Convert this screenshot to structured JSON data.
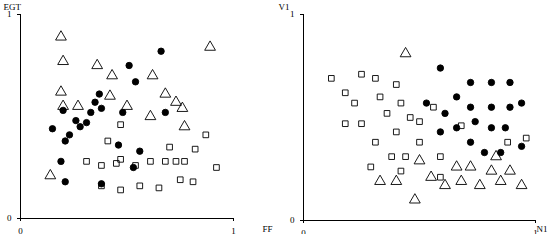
{
  "chart_data": [
    {
      "type": "scatter",
      "x_label": "FF",
      "y_label": "EGT",
      "xlim": [
        0,
        1
      ],
      "ylim": [
        0,
        1
      ],
      "xticks": [
        0,
        1
      ],
      "yticks": [
        0,
        1
      ],
      "grid": false,
      "series": [
        {
          "marker": "open_triangle",
          "color": "#000000",
          "x": [
            0.19,
            0.2,
            0.19,
            0.2,
            0.27,
            0.36,
            0.43,
            0.42,
            0.5,
            0.62,
            0.68,
            0.73,
            0.76,
            0.61,
            0.89,
            0.14,
            0.77
          ],
          "y": [
            0.89,
            0.77,
            0.62,
            0.55,
            0.55,
            0.75,
            0.7,
            0.6,
            0.55,
            0.7,
            0.61,
            0.57,
            0.54,
            0.5,
            0.84,
            0.21,
            0.45
          ]
        },
        {
          "marker": "filled_circle",
          "color": "#000000",
          "x": [
            0.15,
            0.2,
            0.23,
            0.26,
            0.28,
            0.31,
            0.33,
            0.35,
            0.38,
            0.37,
            0.21,
            0.19,
            0.21,
            0.38,
            0.51,
            0.54,
            0.66,
            0.68,
            0.56,
            0.53,
            0.46,
            0.48
          ],
          "y": [
            0.44,
            0.53,
            0.41,
            0.48,
            0.45,
            0.47,
            0.52,
            0.57,
            0.54,
            0.61,
            0.38,
            0.28,
            0.18,
            0.17,
            0.75,
            0.67,
            0.82,
            0.52,
            0.33,
            0.25,
            0.36,
            0.52
          ]
        },
        {
          "marker": "open_square",
          "color": "#000000",
          "x": [
            0.47,
            0.41,
            0.47,
            0.31,
            0.38,
            0.45,
            0.54,
            0.61,
            0.68,
            0.73,
            0.77,
            0.82,
            0.87,
            0.81,
            0.92,
            0.47,
            0.56,
            0.65,
            0.75,
            0.38,
            0.7
          ],
          "y": [
            0.46,
            0.38,
            0.29,
            0.28,
            0.26,
            0.27,
            0.26,
            0.28,
            0.28,
            0.28,
            0.28,
            0.34,
            0.41,
            0.18,
            0.25,
            0.14,
            0.16,
            0.15,
            0.19,
            0.16,
            0.35
          ]
        }
      ]
    },
    {
      "type": "scatter",
      "x_label": "N1",
      "y_label": "V1",
      "xlim": [
        0,
        1
      ],
      "ylim": [
        0,
        1
      ],
      "xticks": [
        0,
        1
      ],
      "yticks": [
        0,
        1
      ],
      "grid": false,
      "series": [
        {
          "marker": "open_square",
          "color": "#000000",
          "x": [
            0.12,
            0.18,
            0.25,
            0.22,
            0.31,
            0.4,
            0.18,
            0.25,
            0.33,
            0.36,
            0.42,
            0.46,
            0.5,
            0.4,
            0.31,
            0.5,
            0.56,
            0.68,
            0.44,
            0.38,
            0.59,
            0.96,
            0.88,
            0.42,
            0.59,
            0.29
          ],
          "y": [
            0.69,
            0.62,
            0.71,
            0.57,
            0.69,
            0.66,
            0.47,
            0.47,
            0.6,
            0.52,
            0.57,
            0.5,
            0.48,
            0.43,
            0.38,
            0.38,
            0.55,
            0.46,
            0.31,
            0.31,
            0.31,
            0.4,
            0.38,
            0.24,
            0.21,
            0.26
          ]
        },
        {
          "marker": "filled_circle",
          "color": "#000000",
          "x": [
            0.59,
            0.66,
            0.72,
            0.81,
            0.89,
            0.94,
            0.89,
            0.81,
            0.72,
            0.61,
            0.66,
            0.74,
            0.81,
            0.87,
            0.72,
            0.78,
            0.85,
            0.94,
            0.59,
            0.53
          ],
          "y": [
            0.74,
            0.6,
            0.67,
            0.67,
            0.67,
            0.57,
            0.55,
            0.55,
            0.55,
            0.52,
            0.45,
            0.48,
            0.45,
            0.45,
            0.38,
            0.33,
            0.33,
            0.36,
            0.43,
            0.57
          ]
        },
        {
          "marker": "open_triangle",
          "color": "#000000",
          "x": [
            0.44,
            0.33,
            0.4,
            0.48,
            0.55,
            0.61,
            0.68,
            0.72,
            0.76,
            0.81,
            0.85,
            0.89,
            0.94,
            0.66,
            0.83,
            0.5
          ],
          "y": [
            0.81,
            0.19,
            0.19,
            0.1,
            0.21,
            0.17,
            0.19,
            0.26,
            0.17,
            0.24,
            0.19,
            0.24,
            0.17,
            0.26,
            0.31,
            0.29
          ]
        }
      ]
    }
  ]
}
